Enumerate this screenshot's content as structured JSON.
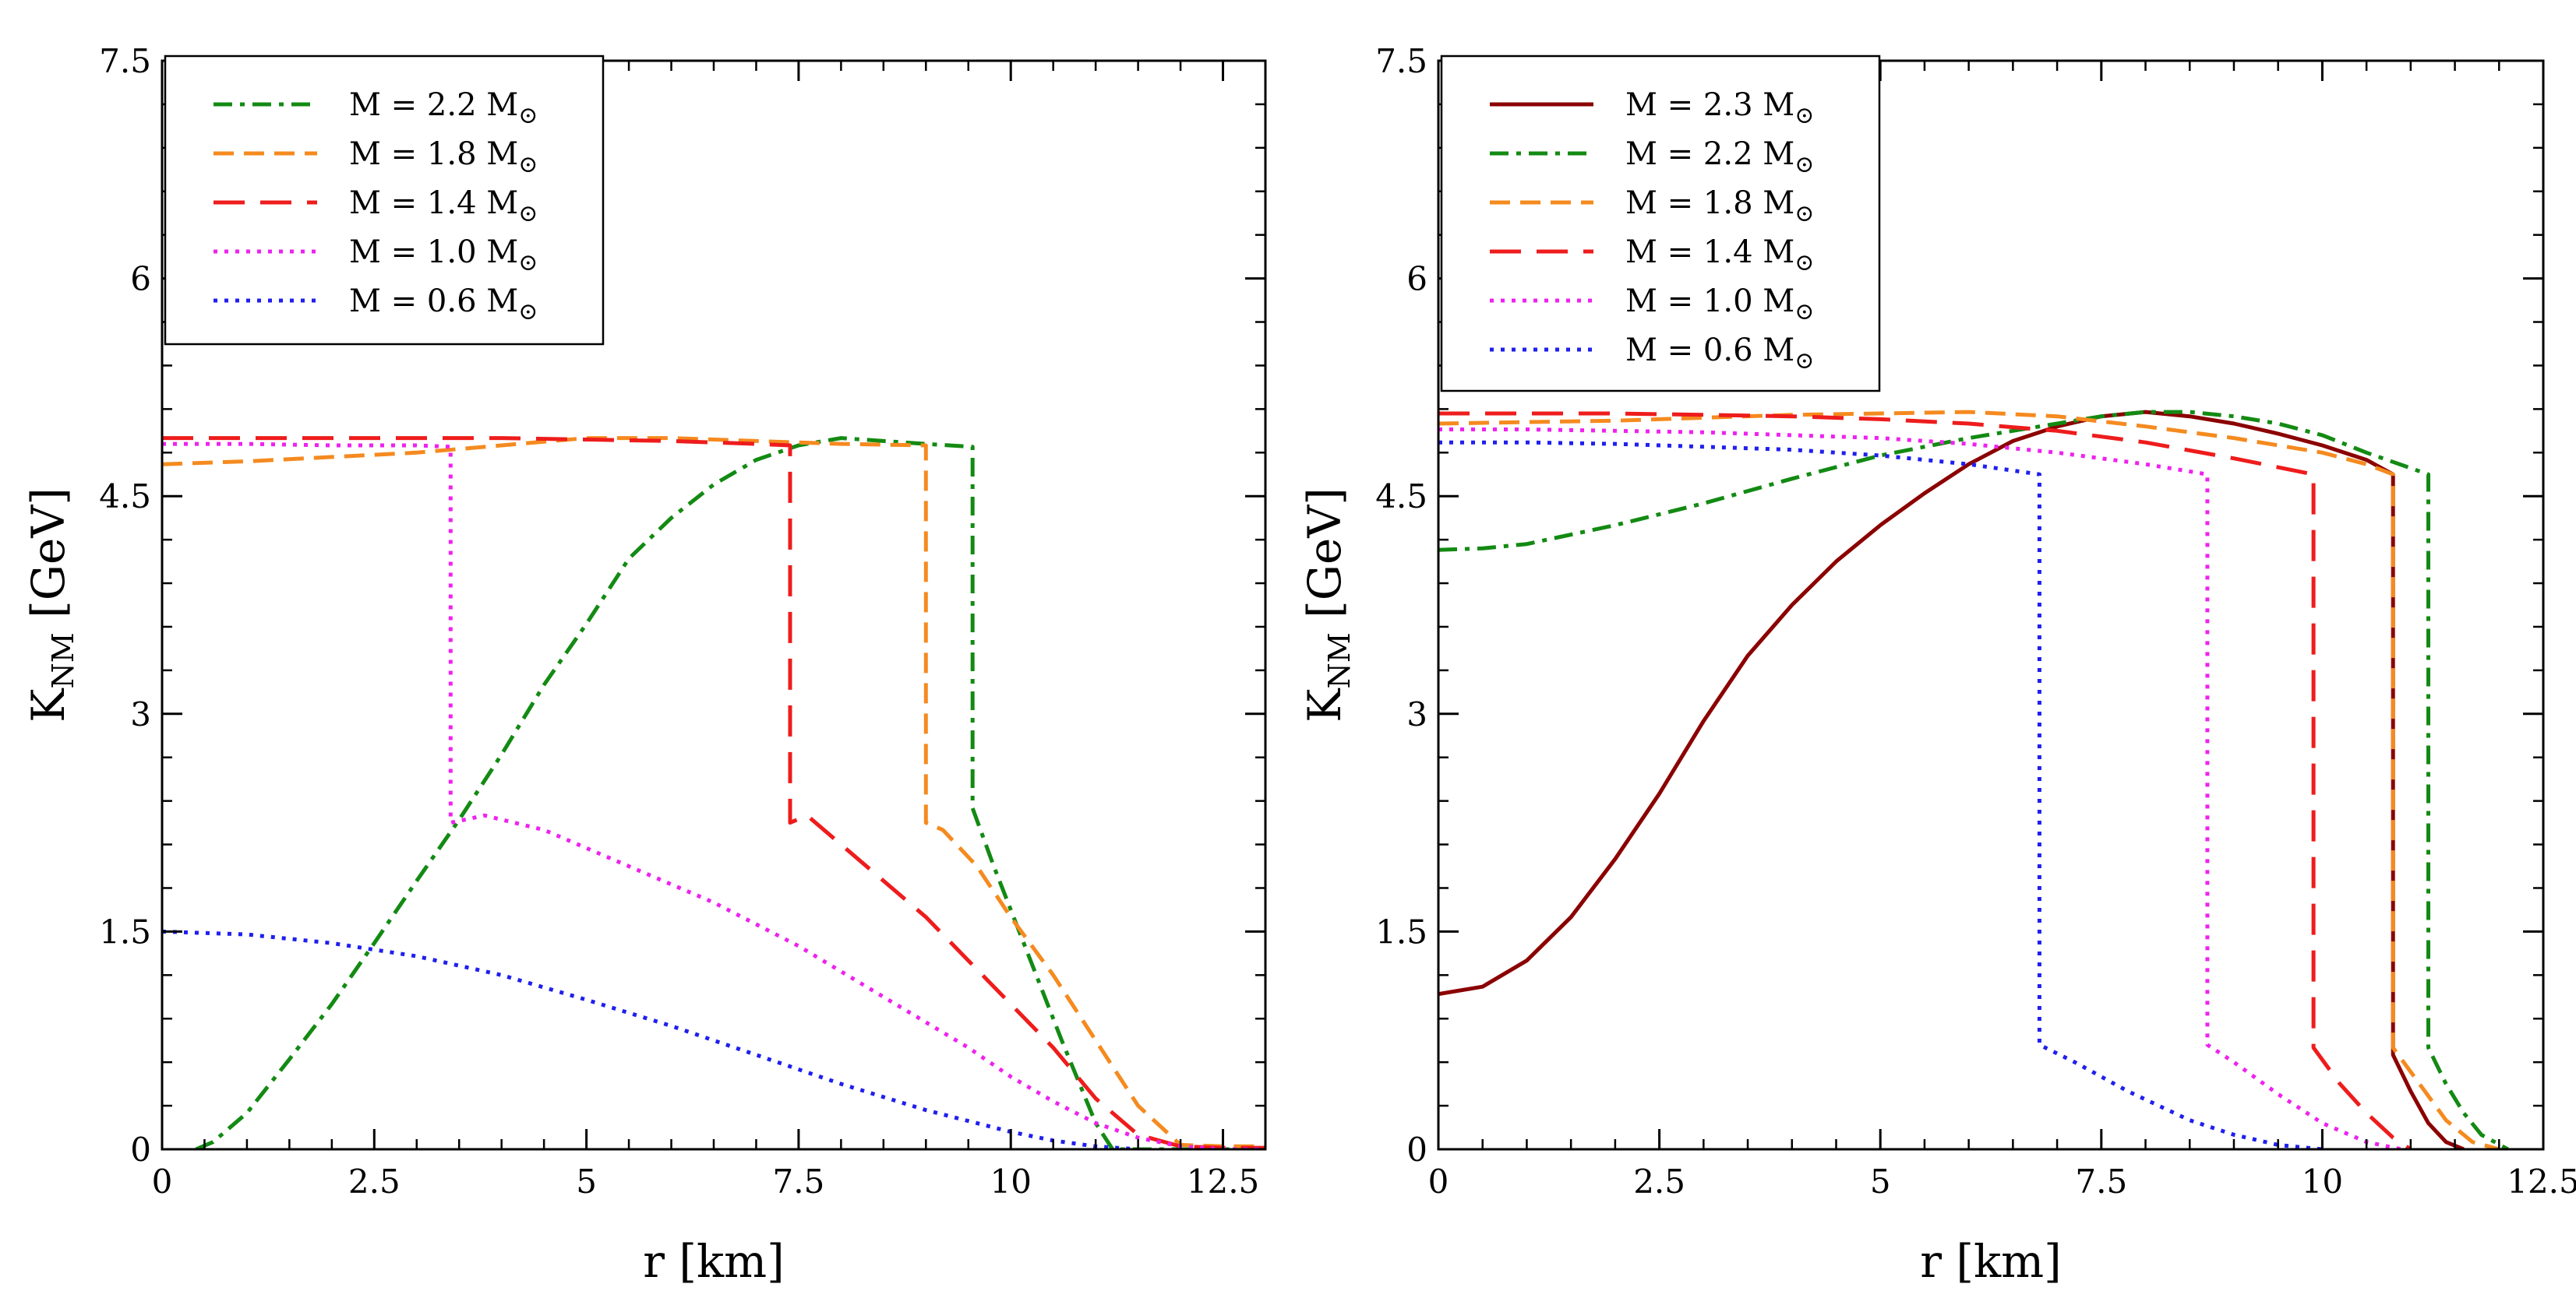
{
  "chart_data": [
    {
      "type": "line",
      "panel": "left",
      "title": "",
      "xlabel": "r [km]",
      "ylabel": "K",
      "ylabel_sub": "NM",
      "ylabel_unit": " [GeV]",
      "xlim": [
        0,
        13
      ],
      "ylim": [
        0,
        7.5
      ],
      "xticks": [
        0,
        2.5,
        5,
        7.5,
        10,
        12.5
      ],
      "xtick_labels": [
        "0",
        "2.5",
        "5",
        "7.5",
        "10",
        "12.5"
      ],
      "yticks": [
        0,
        1.5,
        3,
        4.5,
        6,
        7.5
      ],
      "ytick_labels": [
        "0",
        "1.5",
        "3",
        "4.5",
        "6",
        "7.5"
      ],
      "grid": false,
      "legend_position": "top-left",
      "series": [
        {
          "name": "M = 2.2 M",
          "legend_symbol": "⊙",
          "color": "#138a13",
          "dash": "dashdot",
          "x": [
            0.4,
            0.6,
            1.0,
            1.5,
            2.0,
            2.5,
            3.0,
            3.5,
            4.0,
            4.5,
            5.0,
            5.5,
            6.0,
            6.5,
            7.0,
            7.5,
            8.0,
            8.5,
            9.0,
            9.55,
            9.55,
            9.8,
            10.2,
            10.6,
            11.0,
            11.2,
            11.6,
            12.2,
            13.0
          ],
          "y": [
            0.0,
            0.05,
            0.25,
            0.62,
            1.0,
            1.42,
            1.85,
            2.27,
            2.72,
            3.2,
            3.62,
            4.07,
            4.35,
            4.58,
            4.75,
            4.85,
            4.9,
            4.88,
            4.86,
            4.84,
            2.35,
            1.95,
            1.35,
            0.75,
            0.18,
            0.0,
            0.0,
            0.0,
            0.0
          ]
        },
        {
          "name": "M = 1.8 M",
          "legend_symbol": "⊙",
          "color": "#f58a1f",
          "dash": "dash",
          "x": [
            0,
            1.0,
            2.0,
            3.0,
            4.0,
            5.0,
            6.0,
            7.0,
            8.0,
            9.0,
            9.0,
            9.2,
            9.6,
            10.0,
            10.5,
            11.0,
            11.5,
            12.0,
            12.5,
            13.0
          ],
          "y": [
            4.72,
            4.74,
            4.77,
            4.8,
            4.85,
            4.9,
            4.9,
            4.88,
            4.86,
            4.85,
            2.25,
            2.2,
            1.95,
            1.6,
            1.2,
            0.75,
            0.3,
            0.03,
            0.02,
            0.02
          ]
        },
        {
          "name": "M = 1.4 M",
          "legend_symbol": "⊙",
          "color": "#ee1c1c",
          "dash": "longdash",
          "x": [
            0,
            1.0,
            2.0,
            3.0,
            4.0,
            5.0,
            6.0,
            7.0,
            7.4,
            7.4,
            7.6,
            8.0,
            8.5,
            9.0,
            9.5,
            10.0,
            10.5,
            11.0,
            11.5,
            12.0,
            12.5,
            13.0
          ],
          "y": [
            4.9,
            4.9,
            4.9,
            4.9,
            4.9,
            4.89,
            4.88,
            4.86,
            4.85,
            2.25,
            2.3,
            2.1,
            1.85,
            1.6,
            1.3,
            1.0,
            0.7,
            0.35,
            0.1,
            0.02,
            0.01,
            0.01
          ]
        },
        {
          "name": "M = 1.0 M",
          "legend_symbol": "⊙",
          "color": "#ee22ee",
          "dash": "dot",
          "x": [
            0,
            1.0,
            2.0,
            3.0,
            3.4,
            3.4,
            3.8,
            4.5,
            5.5,
            6.5,
            7.5,
            8.5,
            9.5,
            10.0,
            10.5,
            11.0,
            11.5,
            12.0,
            12.5,
            13.0
          ],
          "y": [
            4.86,
            4.86,
            4.85,
            4.85,
            4.84,
            2.25,
            2.3,
            2.2,
            1.95,
            1.7,
            1.4,
            1.05,
            0.7,
            0.5,
            0.33,
            0.18,
            0.08,
            0.02,
            0.0,
            0.0
          ]
        },
        {
          "name": "M = 0.6 M",
          "legend_symbol": "⊙",
          "color": "#1f1fee",
          "dash": "dot",
          "x": [
            0,
            1.0,
            2.0,
            3.0,
            4.0,
            5.0,
            6.0,
            7.0,
            8.0,
            9.0,
            10.0,
            10.5,
            11.0,
            11.5
          ],
          "y": [
            1.5,
            1.48,
            1.42,
            1.33,
            1.2,
            1.03,
            0.85,
            0.65,
            0.45,
            0.27,
            0.12,
            0.06,
            0.02,
            0.0
          ]
        }
      ]
    },
    {
      "type": "line",
      "panel": "right",
      "title": "",
      "xlabel": "r [km]",
      "ylabel": "K",
      "ylabel_sub": "NM",
      "ylabel_unit": " [GeV]",
      "xlim": [
        0,
        12.5
      ],
      "ylim": [
        0,
        7.5
      ],
      "xticks": [
        0,
        2.5,
        5,
        7.5,
        10,
        12.5
      ],
      "xtick_labels": [
        "0",
        "2.5",
        "5",
        "7.5",
        "10",
        "12.5"
      ],
      "yticks": [
        0,
        1.5,
        3,
        4.5,
        6,
        7.5
      ],
      "ytick_labels": [
        "0",
        "1.5",
        "3",
        "4.5",
        "6",
        "7.5"
      ],
      "grid": false,
      "legend_position": "top-left",
      "series": [
        {
          "name": "M = 2.3 M",
          "legend_symbol": "⊙",
          "color": "#8b0000",
          "dash": "solid",
          "x": [
            0,
            0.5,
            1.0,
            1.5,
            2.0,
            2.5,
            3.0,
            3.5,
            4.0,
            4.5,
            5.0,
            5.5,
            6.0,
            6.5,
            7.0,
            7.5,
            8.0,
            8.5,
            9.0,
            9.5,
            10.0,
            10.5,
            10.8,
            10.8,
            11.0,
            11.2,
            11.4,
            11.6
          ],
          "y": [
            1.07,
            1.12,
            1.3,
            1.6,
            2.0,
            2.45,
            2.95,
            3.4,
            3.75,
            4.05,
            4.3,
            4.52,
            4.72,
            4.88,
            4.98,
            5.05,
            5.08,
            5.05,
            5.0,
            4.93,
            4.85,
            4.75,
            4.65,
            0.65,
            0.4,
            0.18,
            0.05,
            0.0
          ]
        },
        {
          "name": "M = 2.2 M",
          "legend_symbol": "⊙",
          "color": "#138a13",
          "dash": "dashdot",
          "x": [
            0,
            0.5,
            1.0,
            2.0,
            3.0,
            4.0,
            5.0,
            6.0,
            7.0,
            7.5,
            8.0,
            8.5,
            9.0,
            9.5,
            10.0,
            10.5,
            11.2,
            11.2,
            11.4,
            11.6,
            11.8,
            12.1
          ],
          "y": [
            4.13,
            4.14,
            4.17,
            4.3,
            4.45,
            4.62,
            4.78,
            4.9,
            5.0,
            5.05,
            5.08,
            5.08,
            5.05,
            5.0,
            4.92,
            4.8,
            4.65,
            0.7,
            0.45,
            0.25,
            0.1,
            0.0
          ]
        },
        {
          "name": "M = 1.8 M",
          "legend_symbol": "⊙",
          "color": "#f58a1f",
          "dash": "dash",
          "x": [
            0,
            1.0,
            2.0,
            3.0,
            4.0,
            5.0,
            6.0,
            7.0,
            8.0,
            9.0,
            10.0,
            10.5,
            10.8,
            10.8,
            11.1,
            11.4,
            11.7,
            12.0
          ],
          "y": [
            5.0,
            5.01,
            5.02,
            5.04,
            5.06,
            5.07,
            5.08,
            5.05,
            4.98,
            4.9,
            4.8,
            4.72,
            4.65,
            0.7,
            0.45,
            0.2,
            0.05,
            0.0
          ]
        },
        {
          "name": "M = 1.4 M",
          "legend_symbol": "⊙",
          "color": "#ee1c1c",
          "dash": "longdash",
          "x": [
            0,
            1.0,
            2.0,
            3.0,
            4.0,
            5.0,
            6.0,
            7.0,
            8.0,
            9.0,
            9.9,
            9.9,
            10.2,
            10.5,
            10.8,
            11.0
          ],
          "y": [
            5.07,
            5.07,
            5.07,
            5.06,
            5.05,
            5.03,
            5.0,
            4.95,
            4.87,
            4.76,
            4.65,
            0.7,
            0.45,
            0.25,
            0.08,
            0.0
          ]
        },
        {
          "name": "M = 1.0 M",
          "legend_symbol": "⊙",
          "color": "#ee22ee",
          "dash": "dot",
          "x": [
            0,
            1.0,
            2.0,
            3.0,
            4.0,
            5.0,
            6.0,
            7.0,
            8.0,
            8.7,
            8.7,
            9.0,
            9.5,
            10.0,
            10.5,
            10.9
          ],
          "y": [
            4.96,
            4.96,
            4.95,
            4.94,
            4.92,
            4.9,
            4.86,
            4.8,
            4.72,
            4.65,
            0.72,
            0.6,
            0.38,
            0.18,
            0.05,
            0.0
          ]
        },
        {
          "name": "M = 0.6 M",
          "legend_symbol": "⊙",
          "color": "#1f1fee",
          "dash": "dot",
          "x": [
            0,
            1.0,
            2.0,
            3.0,
            4.0,
            5.0,
            6.0,
            6.8,
            6.8,
            7.2,
            7.8,
            8.5,
            9.0,
            9.5,
            10.0
          ],
          "y": [
            4.87,
            4.87,
            4.86,
            4.84,
            4.82,
            4.78,
            4.72,
            4.65,
            0.72,
            0.6,
            0.4,
            0.2,
            0.1,
            0.03,
            0.0
          ]
        }
      ]
    }
  ]
}
